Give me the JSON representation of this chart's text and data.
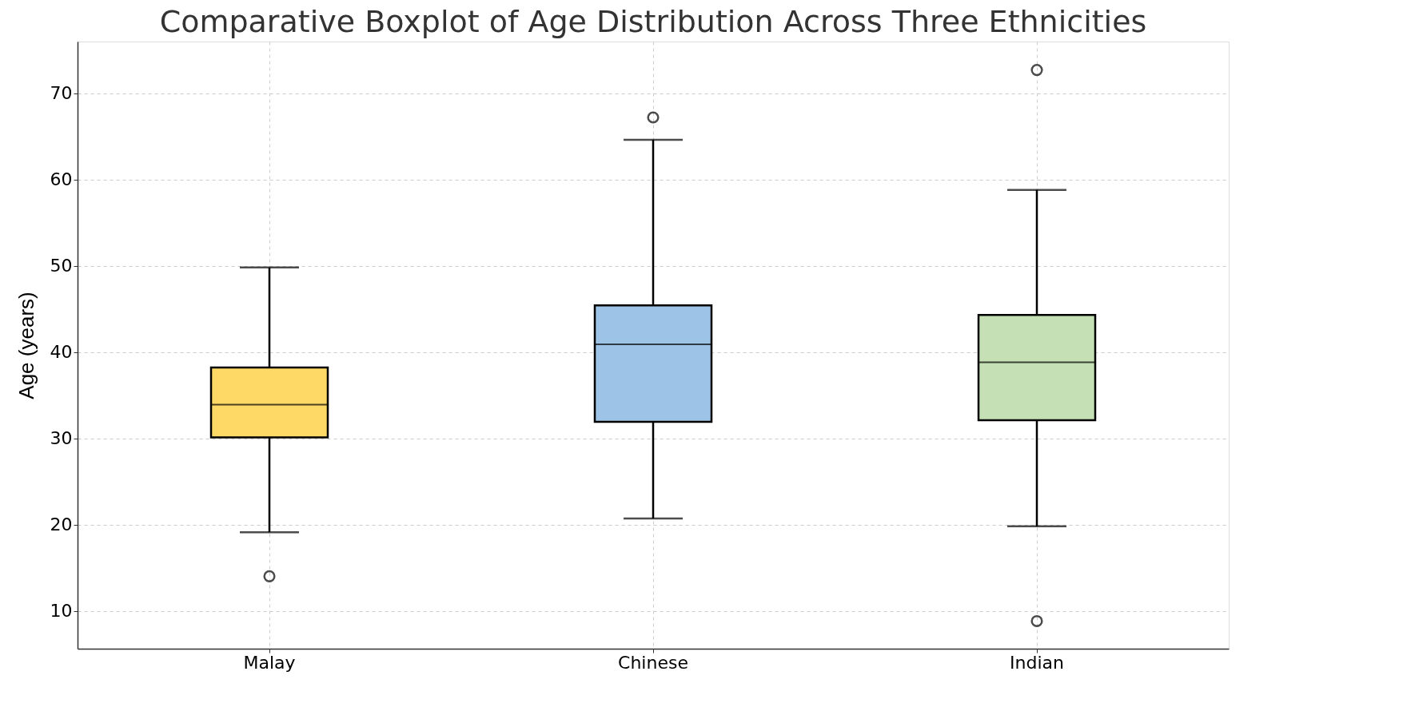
{
  "chart_data": {
    "type": "box",
    "title": "Comparative Boxplot of Age Distribution Across Three Ethnicities",
    "ylabel": "Age (years)",
    "categories": [
      "Malay",
      "Chinese",
      "Indian"
    ],
    "colors": [
      "#ffd966",
      "#9dc3e6",
      "#c5e0b4"
    ],
    "boxes": [
      {
        "low": 19.1,
        "q1": 30.1,
        "median": 33.9,
        "q3": 38.2,
        "high": 49.8,
        "outliers": [
          14.0
        ]
      },
      {
        "low": 20.7,
        "q1": 31.9,
        "median": 40.9,
        "q3": 45.4,
        "high": 64.6,
        "outliers": [
          67.2
        ]
      },
      {
        "low": 19.8,
        "q1": 32.1,
        "median": 38.8,
        "q3": 44.3,
        "high": 58.8,
        "outliers": [
          72.7,
          8.8
        ]
      }
    ],
    "ylim": [
      5.6,
      76.0
    ],
    "yticks": [
      10,
      20,
      30,
      40,
      50,
      60,
      70
    ],
    "grid": true
  }
}
